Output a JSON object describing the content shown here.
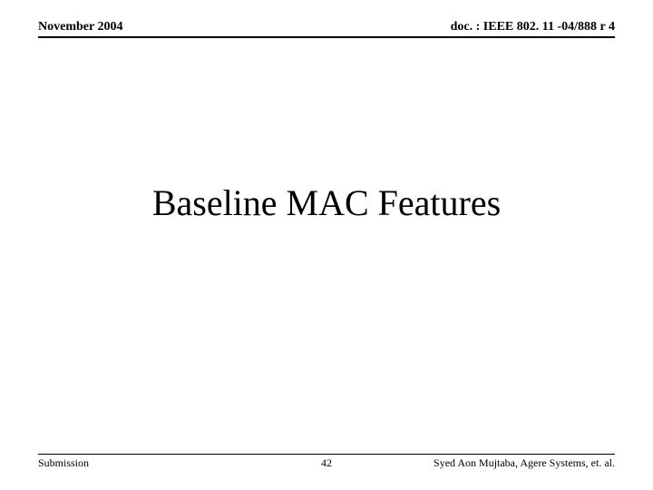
{
  "header": {
    "date": "November 2004",
    "doc_id": "doc. : IEEE 802. 11 -04/888 r 4"
  },
  "main": {
    "title": "Baseline MAC Features"
  },
  "footer": {
    "left": "Submission",
    "page_number": "42",
    "right": "Syed Aon Mujtaba, Agere Systems, et. al."
  }
}
